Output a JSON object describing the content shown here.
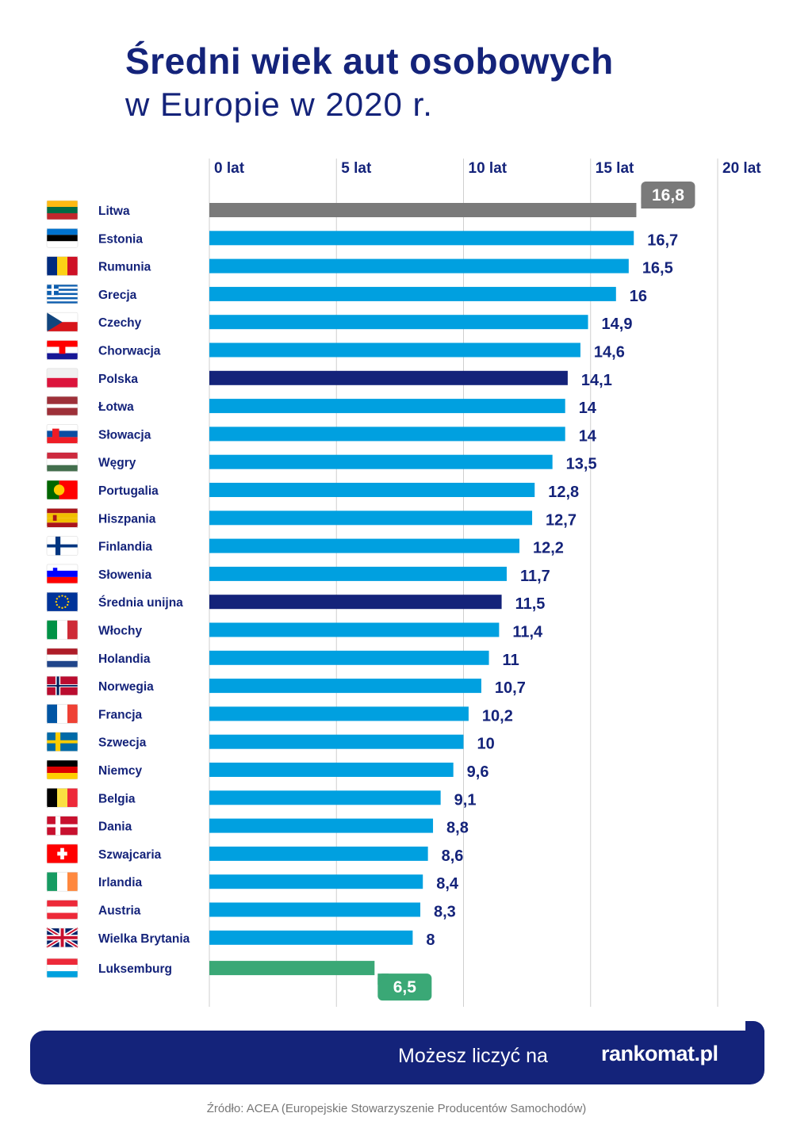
{
  "title": "Średni wiek aut osobowych",
  "subtitle": "w Europie w 2020 r.",
  "footer": {
    "slogan": "Możesz liczyć na",
    "brand": "rankomat.pl"
  },
  "source": "Źródło: ACEA (Europejskie Stowarzyszenie Producentów Samochodów)",
  "colors": {
    "default": "#00a0e0",
    "highlight": "#14237a",
    "max": "#7a7a7a",
    "min": "#3aa876",
    "text": "#14237a"
  },
  "chart_data": {
    "type": "bar",
    "orientation": "horizontal",
    "xlim": [
      0,
      20
    ],
    "ticks": [
      {
        "value": 0,
        "label": "0 lat"
      },
      {
        "value": 5,
        "label": "5 lat"
      },
      {
        "value": 10,
        "label": "10 lat"
      },
      {
        "value": 15,
        "label": "15 lat"
      },
      {
        "value": 20,
        "label": "20 lat"
      }
    ],
    "grid": true,
    "bars": [
      {
        "label": "Litwa",
        "value": 16.8,
        "display": "16,8",
        "flag": "lithuania-flag",
        "style": "max"
      },
      {
        "label": "Estonia",
        "value": 16.7,
        "display": "16,7",
        "flag": "estonia-flag",
        "style": "default"
      },
      {
        "label": "Rumunia",
        "value": 16.5,
        "display": "16,5",
        "flag": "romania-flag",
        "style": "default"
      },
      {
        "label": "Grecja",
        "value": 16,
        "display": "16",
        "flag": "greece-flag",
        "style": "default"
      },
      {
        "label": "Czechy",
        "value": 14.9,
        "display": "14,9",
        "flag": "czechia-flag",
        "style": "default"
      },
      {
        "label": "Chorwacja",
        "value": 14.6,
        "display": "14,6",
        "flag": "croatia-flag",
        "style": "default"
      },
      {
        "label": "Polska",
        "value": 14.1,
        "display": "14,1",
        "flag": "poland-flag",
        "style": "highlight"
      },
      {
        "label": "Łotwa",
        "value": 14,
        "display": "14",
        "flag": "latvia-flag",
        "style": "default"
      },
      {
        "label": "Słowacja",
        "value": 14,
        "display": "14",
        "flag": "slovakia-flag",
        "style": "default"
      },
      {
        "label": "Węgry",
        "value": 13.5,
        "display": "13,5",
        "flag": "hungary-flag",
        "style": "default"
      },
      {
        "label": "Portugalia",
        "value": 12.8,
        "display": "12,8",
        "flag": "portugal-flag",
        "style": "default"
      },
      {
        "label": "Hiszpania",
        "value": 12.7,
        "display": "12,7",
        "flag": "spain-flag",
        "style": "default"
      },
      {
        "label": "Finlandia",
        "value": 12.2,
        "display": "12,2",
        "flag": "finland-flag",
        "style": "default"
      },
      {
        "label": "Słowenia",
        "value": 11.7,
        "display": "11,7",
        "flag": "slovenia-flag",
        "style": "default"
      },
      {
        "label": "Średnia unijna",
        "value": 11.5,
        "display": "11,5",
        "flag": "eu-flag",
        "style": "highlight"
      },
      {
        "label": "Włochy",
        "value": 11.4,
        "display": "11,4",
        "flag": "italy-flag",
        "style": "default"
      },
      {
        "label": "Holandia",
        "value": 11,
        "display": "11",
        "flag": "netherlands-flag",
        "style": "default"
      },
      {
        "label": "Norwegia",
        "value": 10.7,
        "display": "10,7",
        "flag": "norway-flag",
        "style": "default"
      },
      {
        "label": "Francja",
        "value": 10.2,
        "display": "10,2",
        "flag": "france-flag",
        "style": "default"
      },
      {
        "label": "Szwecja",
        "value": 10,
        "display": "10",
        "flag": "sweden-flag",
        "style": "default"
      },
      {
        "label": "Niemcy",
        "value": 9.6,
        "display": "9,6",
        "flag": "germany-flag",
        "style": "default"
      },
      {
        "label": "Belgia",
        "value": 9.1,
        "display": "9,1",
        "flag": "belgium-flag",
        "style": "default"
      },
      {
        "label": "Dania",
        "value": 8.8,
        "display": "8,8",
        "flag": "denmark-flag",
        "style": "default"
      },
      {
        "label": "Szwajcaria",
        "value": 8.6,
        "display": "8,6",
        "flag": "switzerland-flag",
        "style": "default"
      },
      {
        "label": "Irlandia",
        "value": 8.4,
        "display": "8,4",
        "flag": "ireland-flag",
        "style": "default"
      },
      {
        "label": "Austria",
        "value": 8.3,
        "display": "8,3",
        "flag": "austria-flag",
        "style": "default"
      },
      {
        "label": "Wielka Brytania",
        "value": 8,
        "display": "8",
        "flag": "uk-flag",
        "style": "default"
      },
      {
        "label": "Luksemburg",
        "value": 6.5,
        "display": "6,5",
        "flag": "luxembourg-flag",
        "style": "min"
      }
    ]
  }
}
